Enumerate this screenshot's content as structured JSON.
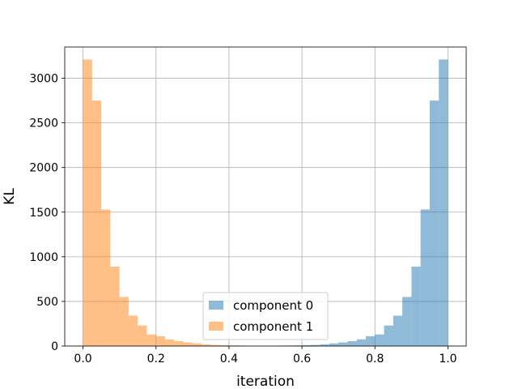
{
  "chart_data": {
    "type": "bar",
    "title": "",
    "xlabel": "iteration",
    "ylabel": "KL",
    "xlim": [
      -0.05,
      1.05
    ],
    "ylim": [
      0,
      3350
    ],
    "bin_width": 0.025,
    "xticks": [
      0.0,
      0.2,
      0.4,
      0.6,
      0.8,
      1.0
    ],
    "xtick_labels": [
      "0.0",
      "0.2",
      "0.4",
      "0.6",
      "0.8",
      "1.0"
    ],
    "yticks": [
      0,
      500,
      1000,
      1500,
      2000,
      2500,
      3000
    ],
    "ytick_labels": [
      "0",
      "500",
      "1000",
      "1500",
      "2000",
      "2500",
      "3000"
    ],
    "grid": true,
    "legend_position": "lower-center",
    "series": [
      {
        "name": "component 0",
        "color": "#1f77b4",
        "alpha": 0.5,
        "bin_starts": [
          0.55,
          0.575,
          0.6,
          0.625,
          0.65,
          0.675,
          0.7,
          0.725,
          0.75,
          0.775,
          0.8,
          0.825,
          0.85,
          0.875,
          0.9,
          0.925,
          0.95,
          0.975
        ],
        "values": [
          5,
          7,
          10,
          13,
          20,
          30,
          40,
          55,
          75,
          110,
          130,
          230,
          340,
          550,
          890,
          1530,
          2750,
          3210
        ]
      },
      {
        "name": "component 1",
        "color": "#ff7f0e",
        "alpha": 0.5,
        "bin_starts": [
          0.0,
          0.025,
          0.05,
          0.075,
          0.1,
          0.125,
          0.15,
          0.175,
          0.2,
          0.225,
          0.25,
          0.275,
          0.3,
          0.325,
          0.35,
          0.375,
          0.4,
          0.425
        ],
        "values": [
          3210,
          2750,
          1530,
          890,
          550,
          340,
          230,
          130,
          110,
          75,
          55,
          40,
          30,
          20,
          13,
          10,
          7,
          5
        ]
      }
    ]
  }
}
